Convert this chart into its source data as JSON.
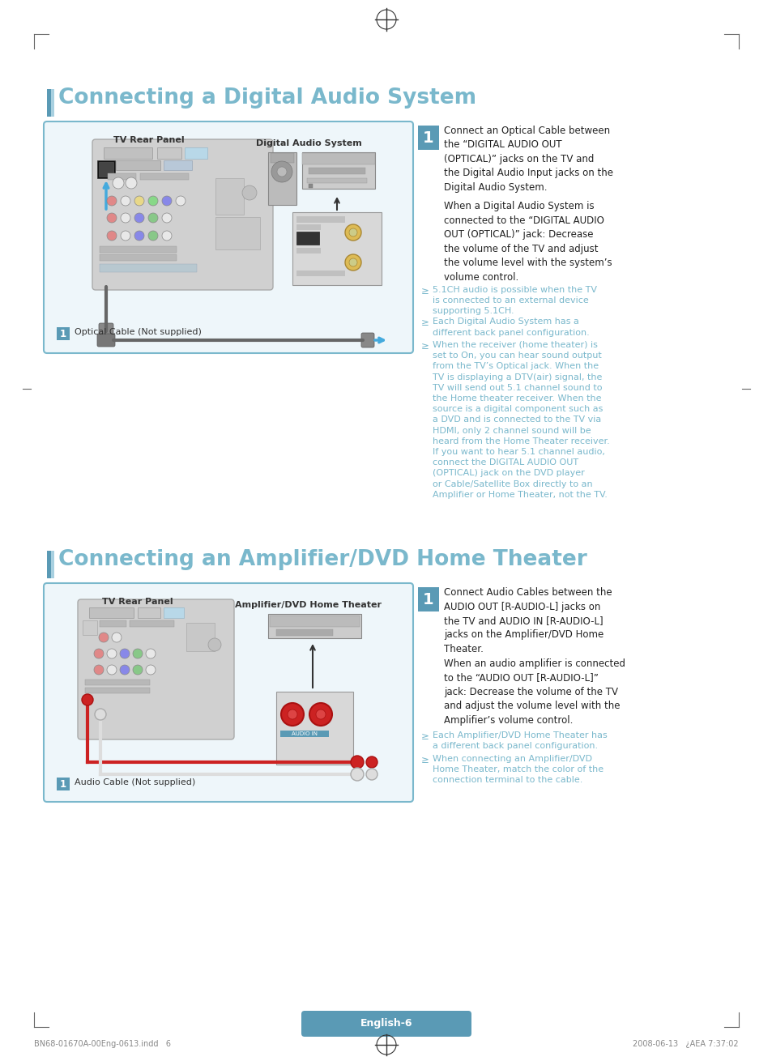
{
  "bg_color": "#ffffff",
  "title1": "Connecting a Digital Audio System",
  "title2": "Connecting an Amplifier/DVD Home Theater",
  "title_color": "#7ab8cc",
  "title_bar_dark": "#5a9ab5",
  "title_bar_light": "#a8d0e0",
  "box_bg": "#eef6fa",
  "box_border": "#7ab8cc",
  "step_bg": "#5a9ab5",
  "body_color": "#222222",
  "bullet_color": "#7ab8cc",
  "footer_bg": "#5a9ab5",
  "footer_text": "English-6",
  "footer_fg": "#ffffff",
  "bottom_left": "BN68-01670A-00Eng-0613.indd   6",
  "bottom_right": "2008-06-13   ¿AEA 7:37:02",
  "s1_label": "TV Rear Panel",
  "s1_device_label": "Digital Audio System",
  "s1_cable_label": "Optical Cable (Not supplied)",
  "s1_step_text1": "Connect an Optical Cable between\nthe “DIGITAL AUDIO OUT\n(OPTICAL)” jacks on the TV and\nthe Digital Audio Input jacks on the\nDigital Audio System.",
  "s1_step_text2": "When a Digital Audio System is\nconnected to the “DIGITAL AUDIO\nOUT (OPTICAL)” jack: Decrease\nthe volume of the TV and adjust\nthe volume level with the system’s\nvolume control.",
  "s1_bullets": [
    "5.1CH audio is possible when the TV\nis connected to an external device\nsupporting 5.1CH.",
    "Each Digital Audio System has a\ndifferent back panel configuration.",
    "When the receiver (home theater) is\nset to On, you can hear sound output\nfrom the TV’s Optical jack. When the\nTV is displaying a DTV(air) signal, the\nTV will send out 5.1 channel sound to\nthe Home theater receiver. When the\nsource is a digital component such as\na DVD and is connected to the TV via\nHDMI, only 2 channel sound will be\nheard from the Home Theater receiver.\nIf you want to hear 5.1 channel audio,\nconnect the DIGITAL AUDIO OUT\n(OPTICAL) jack on the DVD player\nor Cable/Satellite Box directly to an\nAmplifier or Home Theater, not the TV."
  ],
  "s2_label": "TV Rear Panel",
  "s2_device_label": "Amplifier/DVD Home Theater",
  "s2_cable_label": "Audio Cable (Not supplied)",
  "s2_step_text1": "Connect Audio Cables between the\nAUDIO OUT [R-AUDIO-L] jacks on\nthe TV and AUDIO IN [R-AUDIO-L]\njacks on the Amplifier/DVD Home\nTheater.",
  "s2_step_text2": "When an audio amplifier is connected\nto the “AUDIO OUT [R-AUDIO-L]”\njack: Decrease the volume of the TV\nand adjust the volume level with the\nAmplifier’s volume control.",
  "s2_bullets": [
    "Each Amplifier/DVD Home Theater has\na different back panel configuration.",
    "When connecting an Amplifier/DVD\nHome Theater, match the color of the\nconnection terminal to the cable."
  ]
}
